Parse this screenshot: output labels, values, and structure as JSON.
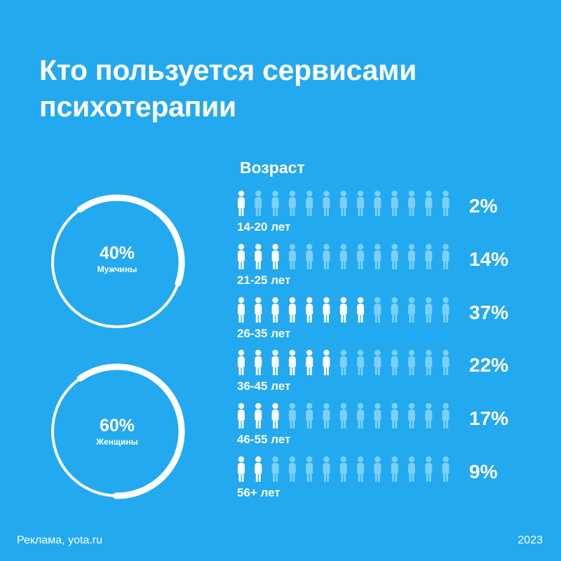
{
  "title": {
    "line1": "Кто пользуется сервисами",
    "line2": "психотерапии"
  },
  "gender": [
    {
      "pct_label": "40%",
      "label": "Мужчины",
      "value": 40
    },
    {
      "pct_label": "60%",
      "label": "Женщины",
      "value": 60
    }
  ],
  "chart_data": {
    "type": "bar",
    "title": "Возраст",
    "categories": [
      "14-20 лет",
      "21-25 лет",
      "26-35 лет",
      "36-45 лет",
      "46-55 лет",
      "56+ лет"
    ],
    "values": [
      2,
      14,
      37,
      22,
      17,
      9
    ],
    "value_labels": [
      "2%",
      "14%",
      "37%",
      "22%",
      "17%",
      "9%"
    ],
    "filled_icons": [
      1,
      3,
      8,
      6,
      3,
      2
    ],
    "icons_per_row": 13,
    "colors": {
      "background": "#23a9ef",
      "filled_icon": "#ffffff",
      "empty_icon": "#7cd0f7"
    }
  },
  "footer": {
    "left": "Реклама, yota.ru",
    "right": "2023"
  }
}
